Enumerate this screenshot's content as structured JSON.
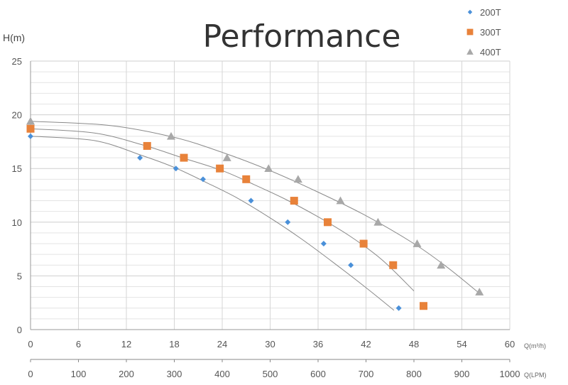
{
  "chart_data": {
    "type": "scatter",
    "title": "Performance",
    "ylabel": "H(m)",
    "x_primary_unit": "Q(m³/h)",
    "x_secondary_unit": "Q(LPM)",
    "ylim": [
      0,
      25
    ],
    "y_ticks": [
      "0",
      "5",
      "10",
      "15",
      "20",
      "25"
    ],
    "xlim_primary": [
      0,
      60
    ],
    "x_primary_ticks": [
      "0",
      "6",
      "12",
      "18",
      "24",
      "30",
      "36",
      "42",
      "48",
      "54",
      "60"
    ],
    "xlim_secondary": [
      0,
      1000
    ],
    "x_secondary_ticks": [
      "0",
      "100",
      "200",
      "300",
      "400",
      "500",
      "600",
      "700",
      "800",
      "900",
      "1000"
    ],
    "grid": true,
    "legend_position": "top-right",
    "series": [
      {
        "name": "200T",
        "marker": "diamond",
        "color": "#4a90d9",
        "points": [
          [
            0,
            18
          ],
          [
            13.7,
            16
          ],
          [
            18.2,
            15
          ],
          [
            21.6,
            14
          ],
          [
            27.6,
            12
          ],
          [
            32.2,
            10
          ],
          [
            36.7,
            8
          ],
          [
            40.1,
            6
          ],
          [
            46.1,
            2
          ]
        ],
        "curve": [
          [
            0,
            18
          ],
          [
            8,
            17.6
          ],
          [
            14,
            16.2
          ],
          [
            18,
            15.1
          ],
          [
            22,
            13.7
          ],
          [
            26,
            12.2
          ],
          [
            30,
            10.4
          ],
          [
            34,
            8.4
          ],
          [
            38,
            6.2
          ],
          [
            42,
            3.9
          ],
          [
            45.5,
            1.8
          ]
        ]
      },
      {
        "name": "300T",
        "marker": "square",
        "color": "#e8823a",
        "points": [
          [
            0,
            18.7
          ],
          [
            14.6,
            17.1
          ],
          [
            19.2,
            16
          ],
          [
            23.7,
            15
          ],
          [
            27,
            14
          ],
          [
            33,
            12
          ],
          [
            37.2,
            10
          ],
          [
            41.7,
            8
          ],
          [
            45.4,
            6
          ],
          [
            49.2,
            2.2
          ]
        ],
        "curve": [
          [
            0,
            18.7
          ],
          [
            8,
            18.3
          ],
          [
            14,
            17.2
          ],
          [
            19,
            16
          ],
          [
            24,
            14.8
          ],
          [
            28,
            13.5
          ],
          [
            32,
            12.1
          ],
          [
            36,
            10.5
          ],
          [
            40,
            8.7
          ],
          [
            44,
            6.5
          ],
          [
            48,
            3.6
          ]
        ]
      },
      {
        "name": "400T",
        "marker": "triangle",
        "color": "#a8a8a8",
        "points": [
          [
            0,
            19.4
          ],
          [
            17.6,
            18
          ],
          [
            24.6,
            16
          ],
          [
            29.8,
            15
          ],
          [
            33.5,
            14
          ],
          [
            38.8,
            12
          ],
          [
            43.5,
            10
          ],
          [
            48.4,
            8
          ],
          [
            51.4,
            6
          ],
          [
            56.2,
            3.5
          ]
        ],
        "curve": [
          [
            0,
            19.4
          ],
          [
            10,
            19
          ],
          [
            18,
            17.9
          ],
          [
            24,
            16.5
          ],
          [
            30,
            14.8
          ],
          [
            36,
            12.8
          ],
          [
            42,
            10.6
          ],
          [
            48,
            8
          ],
          [
            52,
            5.9
          ],
          [
            56,
            3.5
          ]
        ]
      }
    ]
  }
}
